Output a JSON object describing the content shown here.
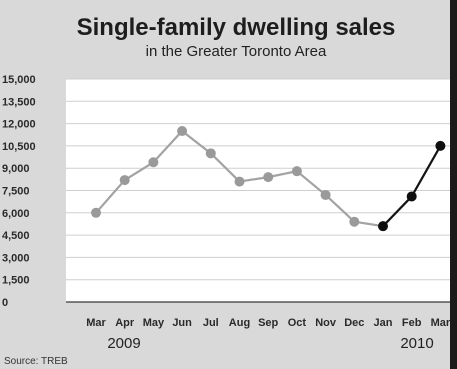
{
  "chart_data": {
    "type": "line",
    "title": "Single-family dwelling sales",
    "subtitle": "in the Greater Toronto Area",
    "categories": [
      "Mar",
      "Apr",
      "May",
      "Jun",
      "Jul",
      "Aug",
      "Sep",
      "Oct",
      "Nov",
      "Dec",
      "Jan",
      "Feb",
      "Mar"
    ],
    "year_labels": [
      "2009",
      "2010"
    ],
    "series": [
      {
        "values": [
          6000,
          8200,
          9400,
          11500,
          10000,
          8100,
          8400,
          8800,
          7200,
          5400,
          5100,
          7100,
          10500
        ]
      }
    ],
    "highlight_from_index": 10,
    "yticks": [
      0,
      1500,
      3000,
      4500,
      6000,
      7500,
      9000,
      10500,
      12000,
      13500,
      15000
    ],
    "ytick_labels": [
      "0",
      "1,500",
      "3,000",
      "4,500",
      "6,000",
      "7,500",
      "9,000",
      "10,500",
      "12,000",
      "13,500",
      "15,000"
    ],
    "ylim": [
      0,
      15000
    ],
    "grid": true,
    "source": "Source: TREB",
    "colors": {
      "line_2009": "#a3a3a3",
      "line_2010": "#141414",
      "marker_2009": "#9a9a9a",
      "marker_2010": "#0f0f0f",
      "plot_bg": "#ffffff",
      "panel_bg": "#d9d9d9",
      "grid": "#cfcfcf"
    }
  }
}
